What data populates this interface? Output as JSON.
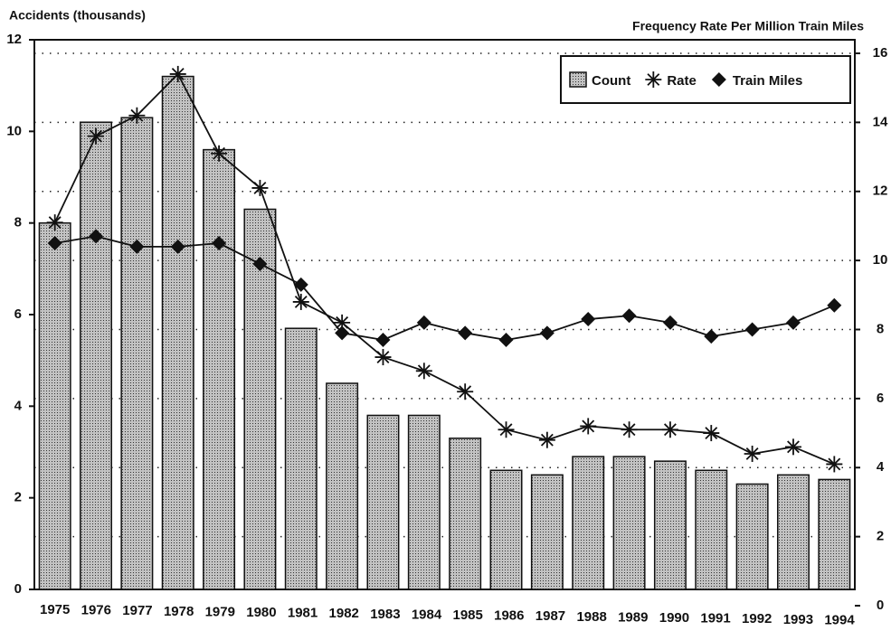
{
  "chart_data": {
    "type": "bar",
    "title_left": "Accidents (thousands)",
    "title_right": "Frequency Rate Per Million Train Miles",
    "categories": [
      "1975",
      "1976",
      "1977",
      "1978",
      "1979",
      "1980",
      "1981",
      "1982",
      "1983",
      "1984",
      "1985",
      "1986",
      "1987",
      "1988",
      "1989",
      "1990",
      "1991",
      "1992",
      "1993",
      "1994"
    ],
    "series": [
      {
        "name": "Count",
        "type": "bar",
        "color": "#b8b8b8",
        "values": [
          8.0,
          10.2,
          10.3,
          11.2,
          9.6,
          8.3,
          5.7,
          4.5,
          3.8,
          3.8,
          3.3,
          2.6,
          2.5,
          2.9,
          2.9,
          2.8,
          2.6,
          2.3,
          2.5,
          2.4
        ]
      },
      {
        "name": "Rate",
        "type": "line",
        "marker": "asterisk",
        "axis": "y2",
        "color": "#111111",
        "values": [
          11.1,
          13.6,
          14.2,
          15.4,
          13.1,
          12.1,
          8.8,
          8.2,
          7.2,
          6.8,
          6.2,
          5.1,
          4.8,
          5.2,
          5.1,
          5.1,
          5.0,
          4.4,
          4.6,
          4.1
        ]
      },
      {
        "name": "Train Miles",
        "type": "line",
        "marker": "diamond",
        "axis": "y2",
        "color": "#111111",
        "values": [
          10.5,
          10.7,
          10.4,
          10.4,
          10.5,
          9.9,
          9.3,
          7.9,
          7.7,
          8.2,
          7.9,
          7.7,
          7.9,
          8.3,
          8.4,
          8.2,
          7.8,
          8.0,
          8.2,
          8.7
        ]
      }
    ],
    "ylim": [
      0,
      12
    ],
    "yticks": [
      0,
      2,
      4,
      6,
      8,
      10,
      12
    ],
    "y2lim": [
      0,
      16
    ],
    "y2ticks": [
      0,
      2,
      4,
      6,
      8,
      10,
      12,
      14,
      16
    ],
    "grid": true,
    "legend": "upper right"
  }
}
